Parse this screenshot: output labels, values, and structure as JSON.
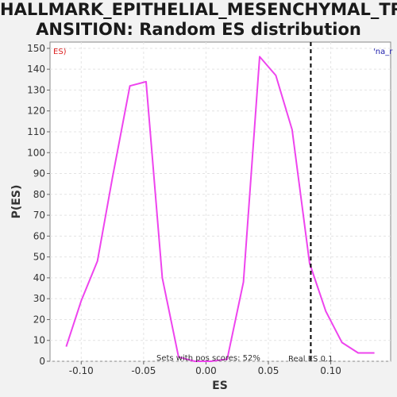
{
  "chart_data": {
    "type": "line",
    "title_lines": [
      "HALLMARK_EPITHELIAL_MESENCHYMAL_TR",
      "ANSITION: Random ES distribution"
    ],
    "xlabel": "ES",
    "ylabel": "P(ES)",
    "xlim": [
      -0.125,
      0.148
    ],
    "ylim": [
      0,
      153
    ],
    "xticks": [
      -0.1,
      -0.05,
      0.0,
      0.05,
      0.1
    ],
    "xtick_labels": [
      "-0.10",
      "-0.05",
      "0.00",
      "0.05",
      "0.10"
    ],
    "yticks": [
      0,
      10,
      20,
      30,
      40,
      50,
      60,
      70,
      80,
      90,
      100,
      110,
      120,
      130,
      140,
      150
    ],
    "grid": true,
    "series": [
      {
        "color": "#ee44ee",
        "x": [
          -0.112,
          -0.1,
          -0.087,
          -0.075,
          -0.061,
          -0.048,
          -0.035,
          -0.022,
          -0.009,
          0.004,
          0.017,
          0.03,
          0.043,
          0.056,
          0.069,
          0.083,
          0.096,
          0.109,
          0.122,
          0.135
        ],
        "y": [
          7,
          29,
          48,
          88,
          132,
          134,
          40,
          2,
          0,
          0,
          1,
          38,
          146,
          137,
          111,
          47,
          24,
          9,
          4,
          4
        ]
      }
    ],
    "real_es": 0.084,
    "annotations": {
      "left_legend": "ES)",
      "right_legend": "'na_r",
      "pos_scores": "Sets with pos scores: 52%",
      "real_es_label": "Real ES 0.1"
    },
    "colors": {
      "line": "#ee44ee",
      "real_es_line": "#000000",
      "left_legend": "#dd2222",
      "right_legend": "#1a1aaa",
      "grid": "#e4e4e4"
    }
  }
}
